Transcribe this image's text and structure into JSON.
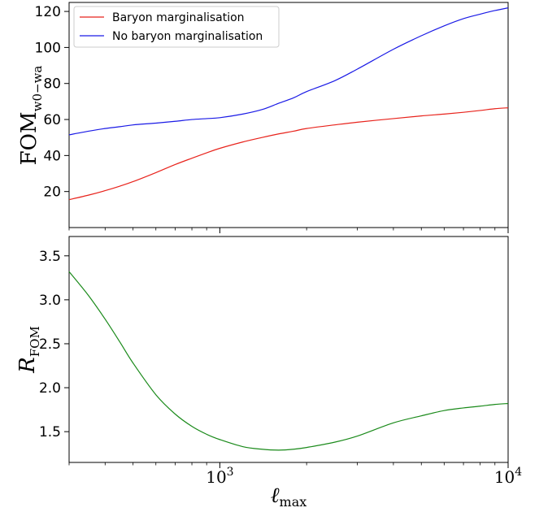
{
  "chart_data": [
    {
      "type": "line",
      "ylabel": "FOM",
      "ylabel_sub": "w0−wa",
      "xscale": "log",
      "xlim": [
        300,
        10000
      ],
      "ylim": [
        0,
        125
      ],
      "yticks": [
        20,
        40,
        60,
        80,
        100,
        120
      ],
      "grid": false,
      "legend_position": "top-left",
      "series": [
        {
          "name": "Baryon marginalisation",
          "color": "#e8231c",
          "x": [
            300,
            350,
            400,
            450,
            500,
            600,
            700,
            800,
            900,
            1000,
            1200,
            1400,
            1600,
            1800,
            2000,
            2500,
            3000,
            4000,
            5000,
            6000,
            7000,
            8000,
            9000,
            10000
          ],
          "y": [
            15.5,
            18,
            20.5,
            23,
            25.5,
            30.5,
            35,
            38.5,
            41.5,
            44,
            47.5,
            50,
            52,
            53.5,
            55,
            57,
            58.5,
            60.5,
            62,
            63,
            64,
            65,
            66,
            66.5
          ]
        },
        {
          "name": "No baryon marginalisation",
          "color": "#1a1ae6",
          "x": [
            300,
            350,
            400,
            450,
            500,
            600,
            700,
            800,
            900,
            1000,
            1200,
            1400,
            1600,
            1800,
            2000,
            2500,
            3000,
            4000,
            5000,
            6000,
            7000,
            8000,
            9000,
            10000
          ],
          "y": [
            51.5,
            53.5,
            55,
            56,
            57,
            58,
            59,
            60,
            60.5,
            61,
            63,
            65.5,
            69,
            72,
            75.5,
            81.5,
            88,
            99,
            106.5,
            112,
            116,
            118.5,
            120.5,
            122
          ]
        }
      ]
    },
    {
      "type": "line",
      "ylabel": "R",
      "ylabel_sub": "FOM",
      "xlabel": "ℓ",
      "xlabel_sub": "max",
      "xscale": "log",
      "xlim": [
        300,
        10000
      ],
      "ylim": [
        1.15,
        3.72
      ],
      "yticks": [
        1.5,
        2.0,
        2.5,
        3.0,
        3.5
      ],
      "ytick_labels": [
        "1.5",
        "2.0",
        "2.5",
        "3.0",
        "3.5"
      ],
      "xticks": [
        1000,
        10000
      ],
      "xtick_base": "10",
      "xtick_exponents": [
        "3",
        "4"
      ],
      "grid": false,
      "series": [
        {
          "color": "#1a8a1a",
          "x": [
            300,
            350,
            400,
            450,
            500,
            600,
            700,
            800,
            900,
            1000,
            1200,
            1400,
            1600,
            1800,
            2000,
            2500,
            3000,
            4000,
            5000,
            6000,
            7000,
            8000,
            9000,
            10000
          ],
          "y": [
            3.32,
            3.05,
            2.78,
            2.52,
            2.28,
            1.92,
            1.7,
            1.56,
            1.47,
            1.41,
            1.33,
            1.3,
            1.29,
            1.3,
            1.32,
            1.38,
            1.45,
            1.6,
            1.68,
            1.74,
            1.77,
            1.79,
            1.81,
            1.82
          ]
        }
      ]
    }
  ]
}
